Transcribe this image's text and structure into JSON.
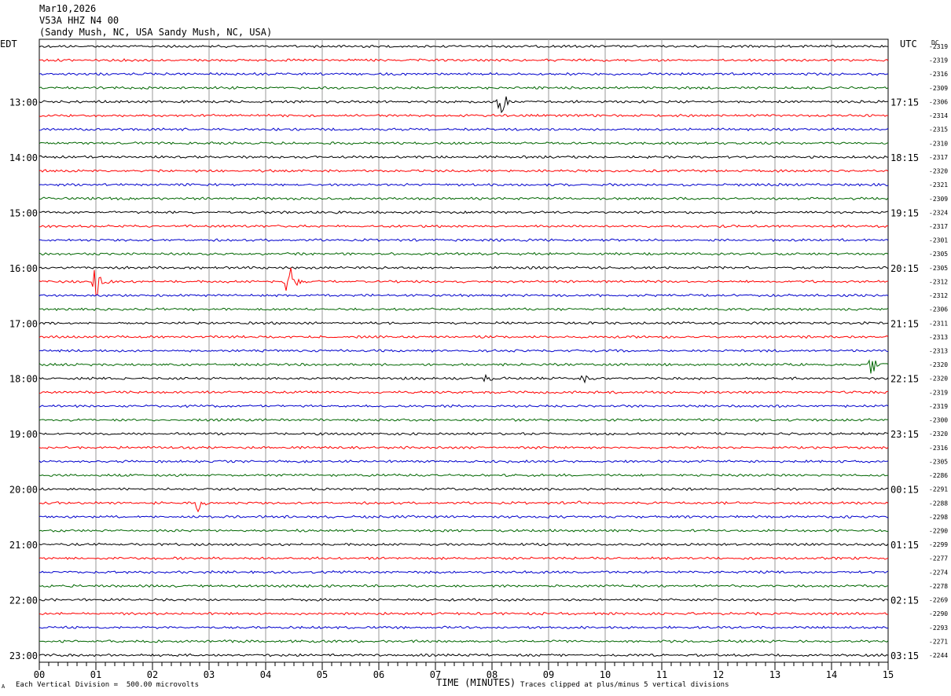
{
  "header": {
    "date": "Mar10,2026",
    "station": "V53A HHZ N4 00",
    "location": "(Sandy Mush, NC, USA Sandy Mush, NC, USA)"
  },
  "footer": {
    "scale_note": "Each Vertical Division =  500.00 microvolts",
    "clip_note": "Traces clipped at plus/minus 5 vertical divisions",
    "corner_mark": "A"
  },
  "chart_data": {
    "type": "line",
    "title": "",
    "xlabel": "TIME (MINUTES)",
    "x_ticks": [
      "00",
      "01",
      "02",
      "03",
      "04",
      "05",
      "06",
      "07",
      "08",
      "09",
      "10",
      "11",
      "12",
      "13",
      "14",
      "15"
    ],
    "xlim": [
      0,
      15
    ],
    "left_axis_label": "EDT",
    "right_axis_label": "UTC",
    "dc_label": "DC",
    "left_time_labels": [
      "",
      "",
      "",
      "",
      "13:00",
      "",
      "",
      "",
      "14:00",
      "",
      "",
      "",
      "15:00",
      "",
      "",
      "",
      "16:00",
      "",
      "",
      "",
      "17:00",
      "",
      "",
      "",
      "18:00",
      "",
      "",
      "",
      "19:00",
      "",
      "",
      "",
      "20:00",
      "",
      "",
      "",
      "21:00",
      "",
      "",
      "",
      "22:00",
      "",
      "",
      "",
      "23:00",
      "",
      "",
      ""
    ],
    "right_time_labels": [
      "",
      "",
      "",
      "",
      "17:15",
      "",
      "",
      "",
      "18:15",
      "",
      "",
      "",
      "19:15",
      "",
      "",
      "",
      "20:15",
      "",
      "",
      "",
      "21:15",
      "",
      "",
      "",
      "22:15",
      "",
      "",
      "",
      "23:15",
      "",
      "",
      "",
      "00:15",
      "",
      "",
      "",
      "01:15",
      "",
      "",
      "",
      "02:15",
      "",
      "",
      "",
      "03:15",
      "",
      "",
      ""
    ],
    "dc_values": [
      "-2319",
      "-2319",
      "-2316",
      "-2309",
      "-2306",
      "-2314",
      "-2315",
      "-2310",
      "-2317",
      "-2320",
      "-2321",
      "-2309",
      "-2324",
      "-2317",
      "-2301",
      "-2305",
      "-2305",
      "-2312",
      "-2312",
      "-2306",
      "-2311",
      "-2313",
      "-2313",
      "-2320",
      "-2320",
      "-2319",
      "-2319",
      "-2300",
      "-2320",
      "-2316",
      "-2305",
      "-2286",
      "-2291",
      "-2288",
      "-2298",
      "-2290",
      "-2299",
      "-2277",
      "-2274",
      "-2278",
      "-2269",
      "-2290",
      "-2293",
      "-2271",
      "-2244"
    ],
    "trace_colors": [
      "#000000",
      "#ff0000",
      "#0000cc",
      "#006600"
    ],
    "events": [
      {
        "trace": 4,
        "minute": 8.15,
        "amplitude": 1.0
      },
      {
        "trace": 17,
        "minute": 1.0,
        "amplitude": 1.8
      },
      {
        "trace": 17,
        "minute": 4.4,
        "amplitude": 1.8
      },
      {
        "trace": 23,
        "minute": 14.7,
        "amplitude": 0.9
      },
      {
        "trace": 24,
        "minute": 7.9,
        "amplitude": 0.35
      },
      {
        "trace": 24,
        "minute": 9.6,
        "amplitude": 0.35
      },
      {
        "trace": 33,
        "minute": 2.8,
        "amplitude": 0.6
      },
      {
        "trace": 33,
        "minute": 9.5,
        "amplitude": 0.15
      }
    ],
    "grid": true
  }
}
